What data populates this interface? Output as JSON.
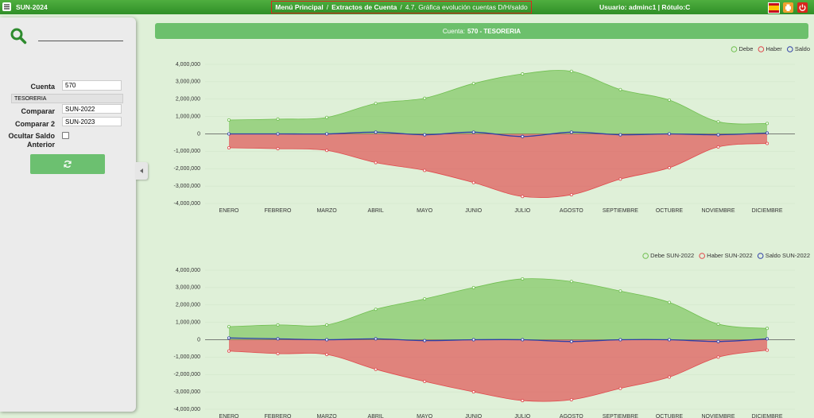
{
  "header": {
    "app": "SUN-2024",
    "separator": "/",
    "breadcrumb": [
      "Menú Principal",
      "Extractos de Cuenta",
      "4.7. Gráfica evolución cuentas D/H/saldo"
    ],
    "user": "Usuario: adminc1 | Rótulo:C"
  },
  "sidebar": {
    "cuenta": {
      "label": "Cuenta",
      "value": "570"
    },
    "name": "TESORERIA",
    "comparar": {
      "label": "Comparar",
      "value": "SUN-2022"
    },
    "comparar2": {
      "label": "Comparar 2",
      "value": "SUN-2023"
    },
    "ocultar": "Ocultar Saldo Anterior"
  },
  "banner": {
    "label": "Cuenta:",
    "value": "570 - TESORERIA"
  },
  "chart_data": [
    {
      "type": "area",
      "legend": "top-right",
      "grid": true,
      "categories": [
        "ENERO",
        "FEBRERO",
        "MARZO",
        "ABRIL",
        "MAYO",
        "JUNIO",
        "JULIO",
        "AGOSTO",
        "SEPTIEMBRE",
        "OCTUBRE",
        "NOVIEMBRE",
        "DICIEMBRE"
      ],
      "series": [
        {
          "name": "Debe",
          "color": "#6fbf4f",
          "fill": true,
          "values": [
            800000,
            850000,
            950000,
            1750000,
            2050000,
            2900000,
            3450000,
            3600000,
            2550000,
            1950000,
            700000,
            600000
          ]
        },
        {
          "name": "Haber",
          "color": "#e0484c",
          "fill": true,
          "values": [
            -800000,
            -850000,
            -950000,
            -1650000,
            -2100000,
            -2800000,
            -3600000,
            -3500000,
            -2600000,
            -1950000,
            -750000,
            -550000
          ]
        },
        {
          "name": "Saldo",
          "color": "#2f3fa8",
          "fill": false,
          "values": [
            0,
            0,
            0,
            100000,
            -50000,
            100000,
            -150000,
            100000,
            -50000,
            0,
            -50000,
            50000
          ]
        }
      ],
      "ylim": [
        -4000000,
        4000000
      ],
      "yticks": [
        {
          "value": -4000000,
          "label": "-4,000,000"
        },
        {
          "value": -3000000,
          "label": "-3,000,000"
        },
        {
          "value": -2000000,
          "label": "-2,000,000"
        },
        {
          "value": -1000000,
          "label": "-1,000,000"
        },
        0,
        {
          "value": 1000000,
          "label": "1,000,000"
        },
        {
          "value": 2000000,
          "label": "2,000,000"
        },
        {
          "value": 3000000,
          "label": "3,000,000"
        },
        {
          "value": 4000000,
          "label": "4,000,000"
        }
      ]
    },
    {
      "type": "area",
      "legend": "top-right",
      "grid": true,
      "categories": [
        "ENERO",
        "FEBRERO",
        "MARZO",
        "ABRIL",
        "MAYO",
        "JUNIO",
        "JULIO",
        "AGOSTO",
        "SEPTIEMBRE",
        "OCTUBRE",
        "NOVIEMBRE",
        "DICIEMBRE"
      ],
      "series": [
        {
          "name": "Debe SUN-2022",
          "color": "#6fbf4f",
          "fill": true,
          "values": [
            750000,
            850000,
            850000,
            1750000,
            2350000,
            3000000,
            3500000,
            3350000,
            2800000,
            2150000,
            900000,
            650000
          ]
        },
        {
          "name": "Haber SUN-2022",
          "color": "#e0484c",
          "fill": true,
          "values": [
            -650000,
            -800000,
            -850000,
            -1700000,
            -2400000,
            -3000000,
            -3500000,
            -3450000,
            -2800000,
            -2150000,
            -1000000,
            -600000
          ]
        },
        {
          "name": "Saldo SUN-2022",
          "color": "#2f3fa8",
          "fill": false,
          "values": [
            100000,
            50000,
            0,
            50000,
            -50000,
            0,
            0,
            -100000,
            0,
            0,
            -100000,
            50000
          ]
        }
      ],
      "ylim": [
        -4000000,
        4000000
      ],
      "yticks": [
        {
          "value": -4000000,
          "label": "-4,000,000"
        },
        {
          "value": -3000000,
          "label": "-3,000,000"
        },
        {
          "value": -2000000,
          "label": "-2,000,000"
        },
        {
          "value": -1000000,
          "label": "-1,000,000"
        },
        0,
        {
          "value": 1000000,
          "label": "1,000,000"
        },
        {
          "value": 2000000,
          "label": "2,000,000"
        },
        {
          "value": 3000000,
          "label": "3,000,000"
        },
        {
          "value": 4000000,
          "label": "4,000,000"
        }
      ]
    }
  ]
}
